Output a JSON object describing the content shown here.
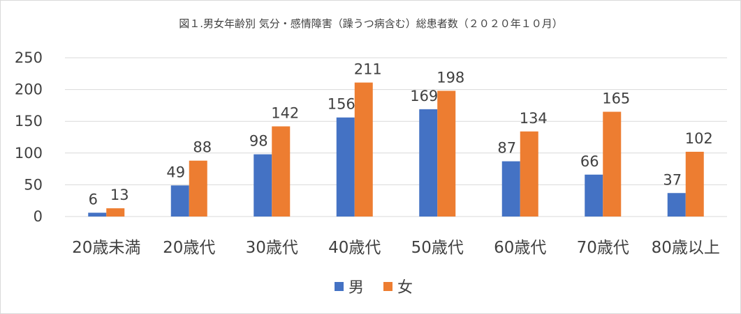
{
  "chart_data": {
    "type": "bar",
    "title": "図１.男女年齢別 気分・感情障害（躁うつ病含む）総患者数（２０２０年１０月）",
    "categories": [
      "20歳未満",
      "20歳代",
      "30歳代",
      "40歳代",
      "50歳代",
      "60歳代",
      "70歳代",
      "80歳以上"
    ],
    "series": [
      {
        "name": "男",
        "color": "#4472c4",
        "values": [
          6,
          49,
          98,
          156,
          169,
          87,
          66,
          37
        ]
      },
      {
        "name": "女",
        "color": "#ed7d31",
        "values": [
          13,
          88,
          142,
          211,
          198,
          134,
          165,
          102
        ]
      }
    ],
    "ylim": [
      0,
      250
    ],
    "yticks": [
      0,
      50,
      100,
      150,
      200,
      250
    ],
    "grid": true,
    "legend": "bottom",
    "xlabel": "",
    "ylabel": ""
  }
}
